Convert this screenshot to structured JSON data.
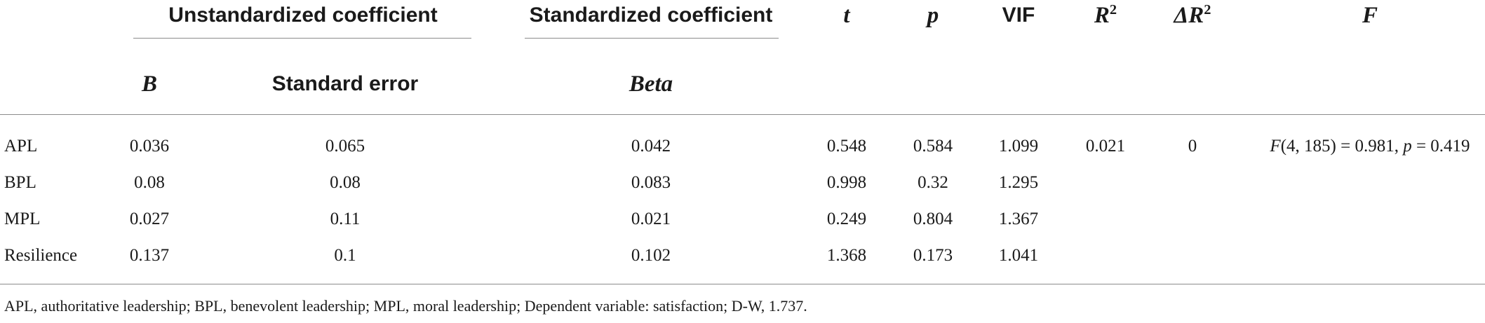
{
  "table": {
    "headers": {
      "unstd_group": "Unstandardized coefficient",
      "std_group": "Standardized coefficient",
      "b": "B",
      "se": "Standard error",
      "beta": "Beta",
      "t": "t",
      "p": "p",
      "vif": "VIF",
      "r2_base": "R",
      "r2_sup": "2",
      "dr2_base": "ΔR",
      "dr2_sup": "2",
      "f": "F"
    },
    "rows": [
      {
        "label": "APL",
        "b": "0.036",
        "se": "0.065",
        "beta": "0.042",
        "t": "0.548",
        "p": "0.584",
        "vif": "1.099",
        "r2": "0.021",
        "dr2": "0"
      },
      {
        "label": "BPL",
        "b": "0.08",
        "se": "0.08",
        "beta": "0.083",
        "t": "0.998",
        "p": "0.32",
        "vif": "1.295"
      },
      {
        "label": "MPL",
        "b": "0.027",
        "se": "0.11",
        "beta": "0.021",
        "t": "0.249",
        "p": "0.804",
        "vif": "1.367"
      },
      {
        "label": "Resilience",
        "b": "0.137",
        "se": "0.1",
        "beta": "0.102",
        "t": "1.368",
        "p": "0.173",
        "vif": "1.041"
      }
    ],
    "f_stat": {
      "f_letter": "F",
      "df": "(4, 185) = 0.981, ",
      "p_letter": "p",
      "p_value": " = 0.419"
    }
  },
  "footnote": "APL, authoritative leadership; BPL, benevolent leadership; MPL, moral leadership; Dependent variable: satisfaction; D-W, 1.737."
}
